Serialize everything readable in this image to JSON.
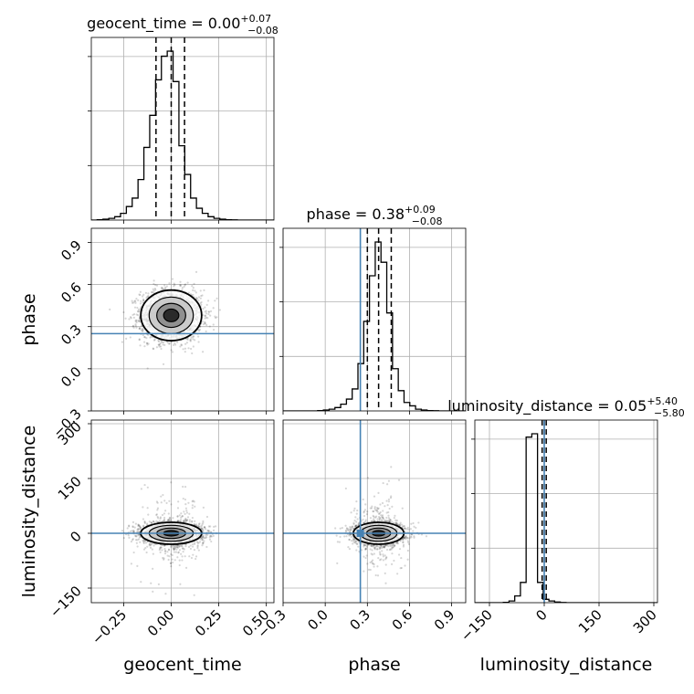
{
  "chart_data": {
    "type": "corner",
    "parameters": [
      "geocent_time",
      "phase",
      "luminosity_distance"
    ],
    "axis_labels": [
      "geocent_time",
      "phase",
      "luminosity_distance"
    ],
    "ranges": [
      [
        -0.42,
        0.54
      ],
      [
        -0.3,
        1.0
      ],
      [
        -190,
        310
      ]
    ],
    "ticks": [
      {
        "values": [
          -0.25,
          0.0,
          0.25,
          0.5
        ],
        "labels": [
          "−0.25",
          "0.00",
          "0.25",
          "0.50"
        ]
      },
      {
        "values": [
          -0.3,
          0.0,
          0.3,
          0.6,
          0.9
        ],
        "labels": [
          "−0.3",
          "0.0",
          "0.3",
          "0.6",
          "0.9"
        ]
      },
      {
        "values": [
          -150,
          0,
          150,
          300
        ],
        "labels": [
          "−150",
          "0",
          "150",
          "300"
        ]
      }
    ],
    "injection": [
      null,
      0.25,
      0.0
    ],
    "titles": [
      {
        "param": "geocent_time",
        "median": "0.00",
        "upper": "+0.07",
        "lower": "−0.08"
      },
      {
        "param": "phase",
        "median": "0.38",
        "upper": "+0.09",
        "lower": "−0.08"
      },
      {
        "param": "luminosity_distance",
        "median": "0.05",
        "upper": "+5.40",
        "lower": "−5.80"
      }
    ],
    "quantiles": [
      [
        -0.08,
        0.0,
        0.07
      ],
      [
        0.3,
        0.38,
        0.47
      ],
      [
        -5.75,
        0.05,
        5.45
      ]
    ],
    "histograms": [
      {
        "x0": -0.42,
        "width": 0.0307,
        "counts": [
          0,
          0.002,
          0.005,
          0.01,
          0.02,
          0.04,
          0.08,
          0.13,
          0.24,
          0.43,
          0.62,
          0.83,
          0.97,
          1.0,
          0.82,
          0.44,
          0.27,
          0.13,
          0.07,
          0.04,
          0.02,
          0.01,
          0.005,
          0.002,
          0.001,
          0.0,
          0.0,
          0.0,
          0.0,
          0.0,
          0.0,
          0.0
        ]
      },
      {
        "x0": -0.3,
        "width": 0.041,
        "counts": [
          0,
          0,
          0,
          0,
          0,
          0,
          0.002,
          0.005,
          0.01,
          0.02,
          0.04,
          0.07,
          0.13,
          0.28,
          0.53,
          0.8,
          1.0,
          0.88,
          0.58,
          0.25,
          0.12,
          0.05,
          0.03,
          0.01,
          0.005,
          0.002,
          0.001,
          0,
          0,
          0,
          0,
          0
        ]
      },
      {
        "x0": -190,
        "width": 15.6,
        "counts": [
          0,
          0,
          0,
          0,
          0,
          0.002,
          0.01,
          0.04,
          0.12,
          0.98,
          1.0,
          0.12,
          0.02,
          0.01,
          0.004,
          0.001,
          0,
          0,
          0,
          0,
          0,
          0,
          0,
          0,
          0,
          0,
          0,
          0,
          0,
          0,
          0,
          0
        ]
      }
    ],
    "joint": [
      {
        "x": 0,
        "y": 1,
        "mean": [
          0.0,
          0.38
        ],
        "sd": [
          0.08,
          0.09
        ],
        "n": 2200
      },
      {
        "x": 0,
        "y": 2,
        "mean": [
          0.0,
          0.0
        ],
        "sd": [
          0.08,
          15
        ],
        "n": 2200
      },
      {
        "x": 1,
        "y": 2,
        "mean": [
          0.38,
          0.0
        ],
        "sd": [
          0.09,
          15
        ],
        "n": 2200
      }
    ]
  }
}
